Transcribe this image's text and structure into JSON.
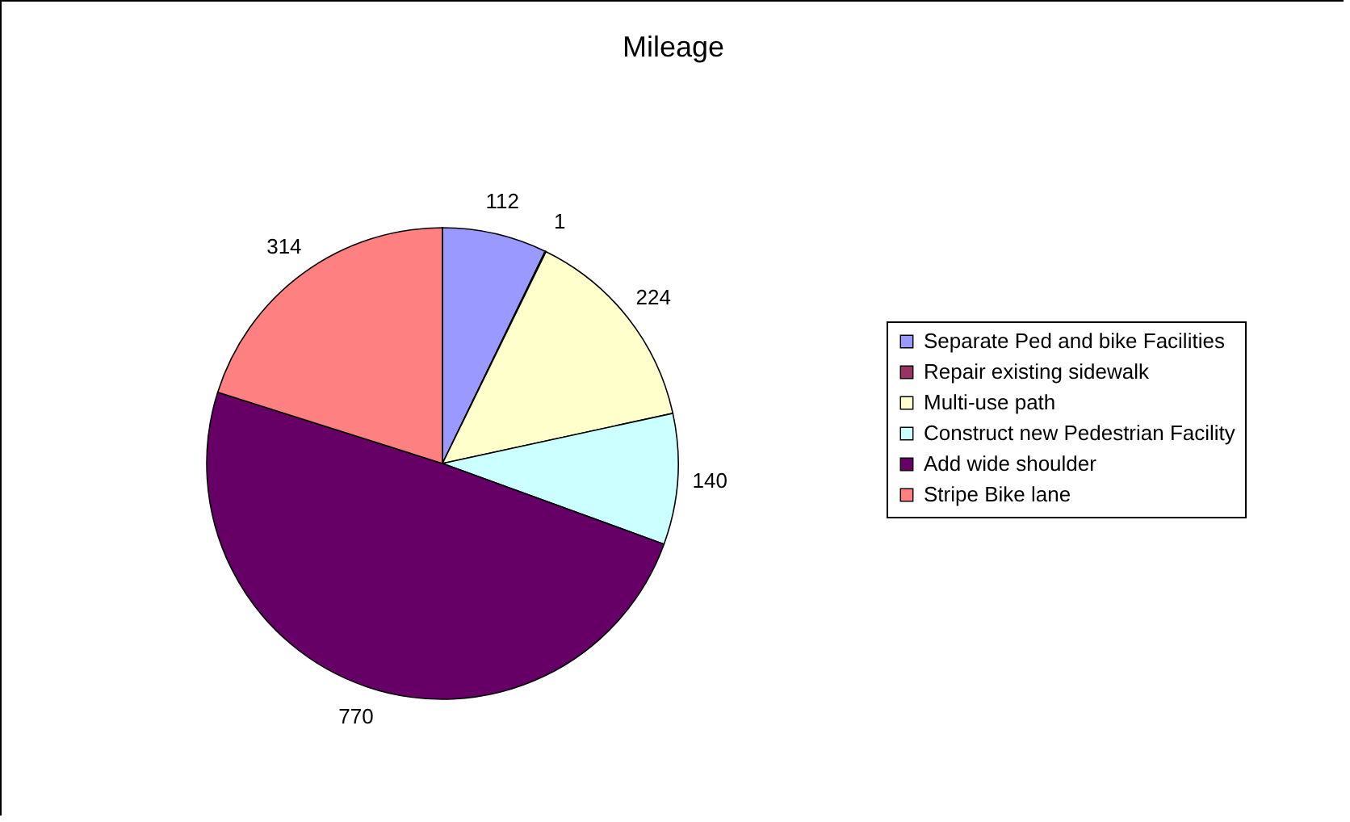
{
  "chart_data": {
    "type": "pie",
    "title": "Mileage",
    "categories": [
      "Separate Ped and bike Facilities",
      "Repair existing sidewalk",
      "Multi-use path",
      "Construct new Pedestrian Facility",
      "Add wide shoulder",
      "Stripe Bike lane"
    ],
    "values": [
      112,
      1,
      224,
      140,
      770,
      314
    ],
    "colors": [
      "#9999ff",
      "#993366",
      "#ffffcc",
      "#ccffff",
      "#660066",
      "#ff8080"
    ],
    "data_labels": true,
    "legend": "right"
  }
}
